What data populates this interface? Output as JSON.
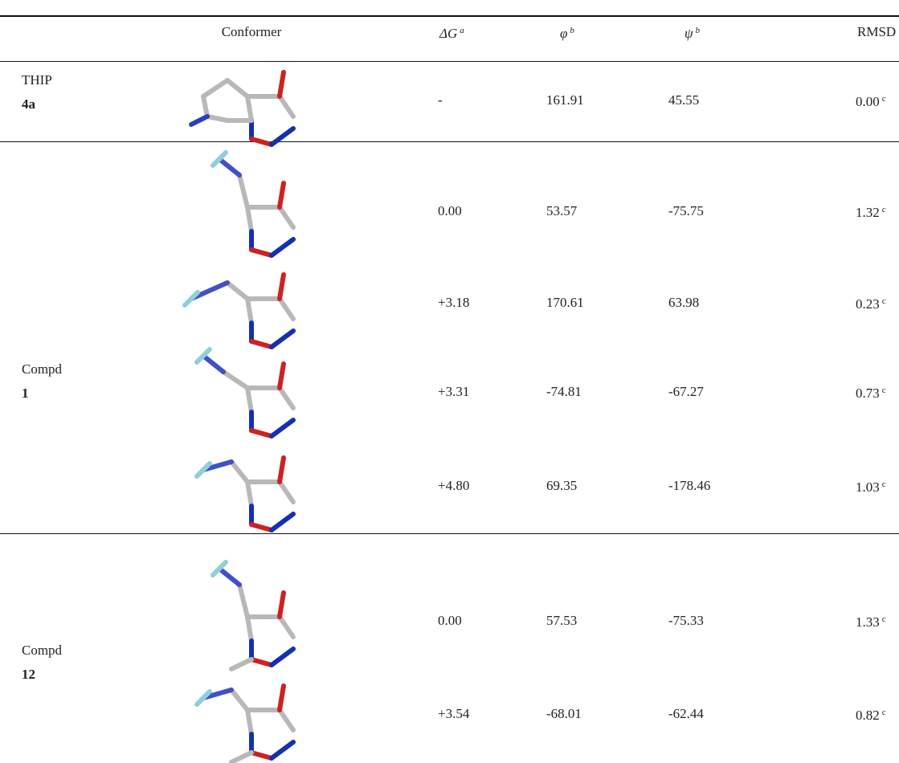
{
  "table": {
    "header": [
      {
        "text": "Conformer"
      },
      {
        "text": "ΔG",
        "sup": "a",
        "italic": true
      },
      {
        "text": "φ",
        "sup": "b",
        "italic": true
      },
      {
        "text": "ψ",
        "sup": "b",
        "italic": true
      },
      {
        "text": "RMSD"
      }
    ],
    "groups": [
      {
        "name": "THIP",
        "id": "4a",
        "rows": [
          {
            "dg": "-",
            "phi": "161.91",
            "psi": "45.55",
            "rmsd": "0.00",
            "note": "c"
          }
        ]
      },
      {
        "name": "Compd",
        "id": "1",
        "rows": [
          {
            "dg": "0.00",
            "phi": "53.57",
            "psi": "-75.75",
            "rmsd": "1.32",
            "note": "c"
          },
          {
            "dg": "+3.18",
            "phi": "170.61",
            "psi": "63.98",
            "rmsd": "0.23",
            "note": "c"
          },
          {
            "dg": "+3.31",
            "phi": "-74.81",
            "psi": "-67.27",
            "rmsd": "0.73",
            "note": "c"
          },
          {
            "dg": "+4.80",
            "phi": "69.35",
            "psi": "-178.46",
            "rmsd": "1.03",
            "note": "c"
          }
        ]
      },
      {
        "name": "Compd",
        "id": "12",
        "rows": [
          {
            "dg": "0.00",
            "phi": "57.53",
            "psi": "-75.33",
            "rmsd": "1.33",
            "note": "c"
          },
          {
            "dg": "+3.54",
            "phi": "-68.01",
            "psi": "-62.44",
            "rmsd": "0.82",
            "note": "c"
          }
        ]
      }
    ]
  }
}
